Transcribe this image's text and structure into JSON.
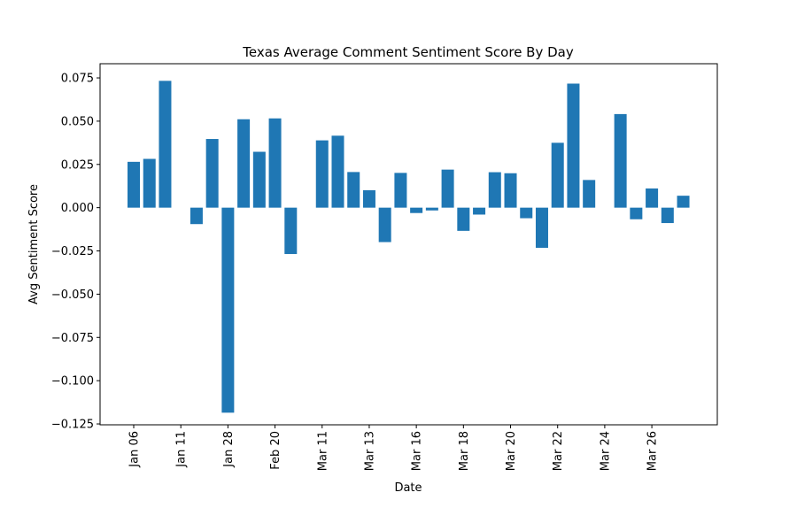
{
  "chart_data": {
    "type": "bar",
    "title": "Texas Average Comment Sentiment Score By Day",
    "xlabel": "Date",
    "ylabel": "Avg Sentiment Score",
    "ylim": [
      -0.1255,
      0.0832
    ],
    "yticks": [
      -0.125,
      -0.1,
      -0.075,
      -0.05,
      -0.025,
      0.0,
      0.025,
      0.05,
      0.075
    ],
    "xtick_labels": [
      "Jan 06",
      "Jan 11",
      "Jan 28",
      "Feb 20",
      "Mar 11",
      "Mar 13",
      "Mar 16",
      "Mar 18",
      "Mar 20",
      "Mar 22",
      "Mar 24",
      "Mar 26"
    ],
    "xtick_positions": [
      0,
      3,
      6,
      9,
      12,
      15,
      18,
      21,
      24,
      27,
      30,
      33
    ],
    "values": [
      0.0265,
      0.0282,
      0.0733,
      null,
      -0.0095,
      0.0397,
      -0.1185,
      0.0511,
      0.0323,
      0.0516,
      -0.0268,
      null,
      0.0389,
      0.0416,
      0.0206,
      0.0101,
      -0.0199,
      0.0201,
      -0.0031,
      -0.0016,
      0.022,
      -0.0134,
      -0.004,
      0.0205,
      0.0199,
      -0.0061,
      -0.0232,
      0.0375,
      0.0717,
      0.016,
      null,
      0.0541,
      -0.0067,
      0.0111,
      -0.0089,
      0.0069
    ],
    "bar_color": "#1f77b4",
    "grid": false,
    "legend": "none"
  }
}
